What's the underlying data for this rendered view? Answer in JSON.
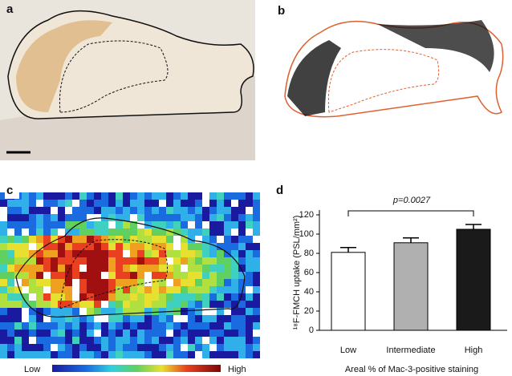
{
  "figure": {
    "panel_labels": [
      "a",
      "b",
      "c",
      "d"
    ],
    "colorbar": {
      "low": "Low",
      "high": "High"
    }
  },
  "chart_data": {
    "type": "bar",
    "categories": [
      "Low",
      "Intermediate",
      "High"
    ],
    "values": [
      81,
      91,
      105
    ],
    "errors": [
      5,
      5,
      5
    ],
    "colors": [
      "#ffffff",
      "#b0b0b0",
      "#1a1a1a"
    ],
    "ylim": [
      0,
      120
    ],
    "yticks": [
      0,
      20,
      40,
      60,
      80,
      100,
      120
    ],
    "ylabel": "¹⁸F-FMCH uptake (PSL/mm²)",
    "xlabel": "Areal % of Mac-3-positive staining",
    "annotation": "p=0.0027"
  }
}
